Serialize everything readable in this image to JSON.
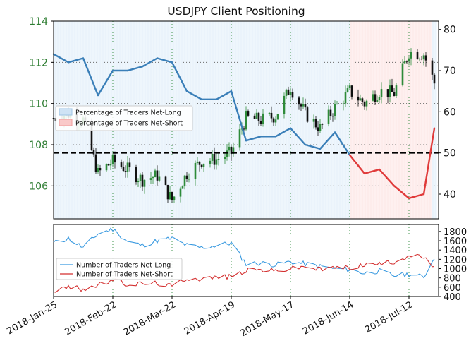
{
  "chart_data": [
    {
      "type": "candlestick+line",
      "title": "USDJPY Client Positioning",
      "x_tick_labels": [
        "2018-Jan-25",
        "2018-Feb-22",
        "2018-Mar-22",
        "2018-Apr-19",
        "2018-May-17",
        "2018-Jun-14",
        "2018-Jul-12"
      ],
      "left_axis": {
        "ticks": [
          106,
          108,
          110,
          112,
          114
        ],
        "range": [
          104.4,
          114.0
        ],
        "color": "#2e7d32"
      },
      "right_axis": {
        "ticks": [
          40,
          50,
          60,
          70,
          80
        ],
        "range": [
          34,
          82
        ]
      },
      "reference_line": {
        "value": 50,
        "axis": "right",
        "style": "dashed"
      },
      "legend": {
        "placement": "left",
        "entries": [
          {
            "label": "Percentage of Traders Net-Long",
            "color": "#cfe3f5"
          },
          {
            "label": "Percentage of Traders Net-Short",
            "color": "#f9c9c9"
          }
        ]
      },
      "price_closes_weekly": [
        {
          "date": "2018-01-25",
          "close": 109.3
        },
        {
          "date": "2018-02-01",
          "close": 109.5
        },
        {
          "date": "2018-02-08",
          "close": 109.2
        },
        {
          "date": "2018-02-15",
          "close": 106.6
        },
        {
          "date": "2018-02-22",
          "close": 107.2
        },
        {
          "date": "2018-03-01",
          "close": 106.8
        },
        {
          "date": "2018-03-08",
          "close": 106.3
        },
        {
          "date": "2018-03-15",
          "close": 106.5
        },
        {
          "date": "2018-03-22",
          "close": 105.3
        },
        {
          "date": "2018-03-29",
          "close": 106.6
        },
        {
          "date": "2018-04-05",
          "close": 107.2
        },
        {
          "date": "2018-04-12",
          "close": 107.3
        },
        {
          "date": "2018-04-19",
          "close": 107.6
        },
        {
          "date": "2018-04-26",
          "close": 109.3
        },
        {
          "date": "2018-05-03",
          "close": 109.2
        },
        {
          "date": "2018-05-10",
          "close": 109.4
        },
        {
          "date": "2018-05-17",
          "close": 110.8
        },
        {
          "date": "2018-05-24",
          "close": 109.5
        },
        {
          "date": "2018-05-31",
          "close": 108.8
        },
        {
          "date": "2018-06-07",
          "close": 109.8
        },
        {
          "date": "2018-06-14",
          "close": 110.6
        },
        {
          "date": "2018-06-21",
          "close": 110.0
        },
        {
          "date": "2018-06-28",
          "close": 110.6
        },
        {
          "date": "2018-07-05",
          "close": 110.5
        },
        {
          "date": "2018-07-12",
          "close": 112.5
        },
        {
          "date": "2018-07-19",
          "close": 112.4
        },
        {
          "date": "2018-07-24",
          "close": 111.0
        }
      ],
      "percent_net_long": [
        {
          "date": "2018-01-25",
          "value": 74
        },
        {
          "date": "2018-02-01",
          "value": 72
        },
        {
          "date": "2018-02-08",
          "value": 73
        },
        {
          "date": "2018-02-15",
          "value": 64
        },
        {
          "date": "2018-02-22",
          "value": 70
        },
        {
          "date": "2018-03-01",
          "value": 70
        },
        {
          "date": "2018-03-08",
          "value": 71
        },
        {
          "date": "2018-03-15",
          "value": 73
        },
        {
          "date": "2018-03-22",
          "value": 72
        },
        {
          "date": "2018-03-29",
          "value": 65
        },
        {
          "date": "2018-04-05",
          "value": 63
        },
        {
          "date": "2018-04-12",
          "value": 63
        },
        {
          "date": "2018-04-19",
          "value": 65
        },
        {
          "date": "2018-04-26",
          "value": 53
        },
        {
          "date": "2018-05-03",
          "value": 54
        },
        {
          "date": "2018-05-10",
          "value": 54
        },
        {
          "date": "2018-05-17",
          "value": 56
        },
        {
          "date": "2018-05-24",
          "value": 52
        },
        {
          "date": "2018-05-31",
          "value": 51
        },
        {
          "date": "2018-06-07",
          "value": 55
        },
        {
          "date": "2018-06-14",
          "value": 49.5
        },
        {
          "date": "2018-06-21",
          "value": 45
        },
        {
          "date": "2018-06-28",
          "value": 46
        },
        {
          "date": "2018-07-05",
          "value": 42
        },
        {
          "date": "2018-07-12",
          "value": 39
        },
        {
          "date": "2018-07-19",
          "value": 40
        },
        {
          "date": "2018-07-24",
          "value": 56
        }
      ],
      "line_color_net_long": "#3a7fb8",
      "line_color_net_short": "#e03a3a",
      "candle_up_color": "#2e8b3a",
      "candle_down_color": "#111111"
    },
    {
      "type": "line",
      "left_axis": null,
      "right_axis": {
        "ticks": [
          400,
          600,
          800,
          1000,
          1200,
          1400,
          1600,
          1800
        ],
        "range": [
          400,
          1950
        ]
      },
      "legend": {
        "placement": "left",
        "entries": [
          {
            "label": "Number of Traders Net-Long",
            "color": "#3a9ae0"
          },
          {
            "label": "Number of Traders Net-Short",
            "color": "#d32f2f"
          }
        ]
      },
      "series": [
        {
          "name": "Number of Traders Net-Long",
          "color": "#3a9ae0",
          "points": [
            {
              "date": "2018-01-25",
              "value": 1550
            },
            {
              "date": "2018-02-01",
              "value": 1650
            },
            {
              "date": "2018-02-08",
              "value": 1450
            },
            {
              "date": "2018-02-15",
              "value": 1750
            },
            {
              "date": "2018-02-22",
              "value": 1850
            },
            {
              "date": "2018-03-01",
              "value": 1580
            },
            {
              "date": "2018-03-08",
              "value": 1500
            },
            {
              "date": "2018-03-15",
              "value": 1600
            },
            {
              "date": "2018-03-22",
              "value": 1650
            },
            {
              "date": "2018-03-29",
              "value": 1500
            },
            {
              "date": "2018-04-05",
              "value": 1450
            },
            {
              "date": "2018-04-12",
              "value": 1500
            },
            {
              "date": "2018-04-19",
              "value": 1550
            },
            {
              "date": "2018-04-26",
              "value": 1100
            },
            {
              "date": "2018-05-03",
              "value": 1120
            },
            {
              "date": "2018-05-10",
              "value": 1080
            },
            {
              "date": "2018-05-17",
              "value": 1150
            },
            {
              "date": "2018-05-24",
              "value": 1100
            },
            {
              "date": "2018-05-31",
              "value": 1050
            },
            {
              "date": "2018-06-07",
              "value": 1000
            },
            {
              "date": "2018-06-14",
              "value": 980
            },
            {
              "date": "2018-06-21",
              "value": 900
            },
            {
              "date": "2018-06-28",
              "value": 950
            },
            {
              "date": "2018-07-05",
              "value": 850
            },
            {
              "date": "2018-07-12",
              "value": 880
            },
            {
              "date": "2018-07-19",
              "value": 820
            },
            {
              "date": "2018-07-24",
              "value": 1230
            }
          ]
        },
        {
          "name": "Number of Traders Net-Short",
          "color": "#d32f2f",
          "points": [
            {
              "date": "2018-01-25",
              "value": 520
            },
            {
              "date": "2018-02-01",
              "value": 600
            },
            {
              "date": "2018-02-08",
              "value": 560
            },
            {
              "date": "2018-02-15",
              "value": 640
            },
            {
              "date": "2018-02-22",
              "value": 750
            },
            {
              "date": "2018-03-01",
              "value": 660
            },
            {
              "date": "2018-03-08",
              "value": 680
            },
            {
              "date": "2018-03-15",
              "value": 690
            },
            {
              "date": "2018-03-22",
              "value": 620
            },
            {
              "date": "2018-03-29",
              "value": 800
            },
            {
              "date": "2018-04-05",
              "value": 780
            },
            {
              "date": "2018-04-12",
              "value": 820
            },
            {
              "date": "2018-04-19",
              "value": 830
            },
            {
              "date": "2018-04-26",
              "value": 960
            },
            {
              "date": "2018-05-03",
              "value": 980
            },
            {
              "date": "2018-05-10",
              "value": 950
            },
            {
              "date": "2018-05-17",
              "value": 1000
            },
            {
              "date": "2018-05-24",
              "value": 1050
            },
            {
              "date": "2018-05-31",
              "value": 980
            },
            {
              "date": "2018-06-07",
              "value": 1030
            },
            {
              "date": "2018-06-14",
              "value": 1020
            },
            {
              "date": "2018-06-21",
              "value": 1090
            },
            {
              "date": "2018-06-28",
              "value": 1100
            },
            {
              "date": "2018-07-05",
              "value": 1150
            },
            {
              "date": "2018-07-12",
              "value": 1280
            },
            {
              "date": "2018-07-19",
              "value": 1250
            },
            {
              "date": "2018-07-24",
              "value": 1000
            }
          ]
        }
      ]
    }
  ]
}
